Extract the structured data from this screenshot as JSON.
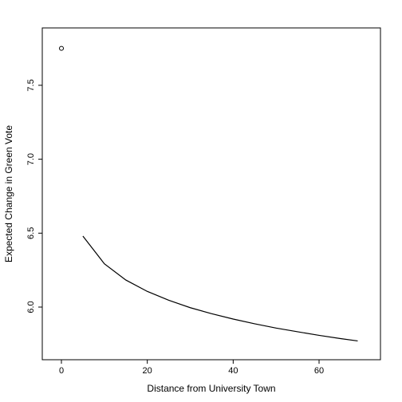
{
  "chart_data": {
    "type": "line",
    "xlabel": "Distance from University Town",
    "ylabel": "Expected Change in Green Vote",
    "xlim": [
      -4.46,
      74.3
    ],
    "ylim": [
      5.644,
      7.888
    ],
    "xticks": [
      0,
      20,
      40,
      60
    ],
    "yticks": [
      6.0,
      6.5,
      7.0,
      7.5
    ],
    "points": {
      "x": [
        0
      ],
      "values": [
        7.75
      ]
    },
    "line": {
      "x": [
        5,
        10,
        15,
        20,
        25,
        30,
        35,
        40,
        45,
        50,
        55,
        60,
        65,
        69
      ],
      "values": [
        6.48,
        6.293,
        6.183,
        6.106,
        6.046,
        5.996,
        5.955,
        5.919,
        5.887,
        5.858,
        5.833,
        5.809,
        5.787,
        5.771
      ]
    },
    "color": "#000000"
  }
}
